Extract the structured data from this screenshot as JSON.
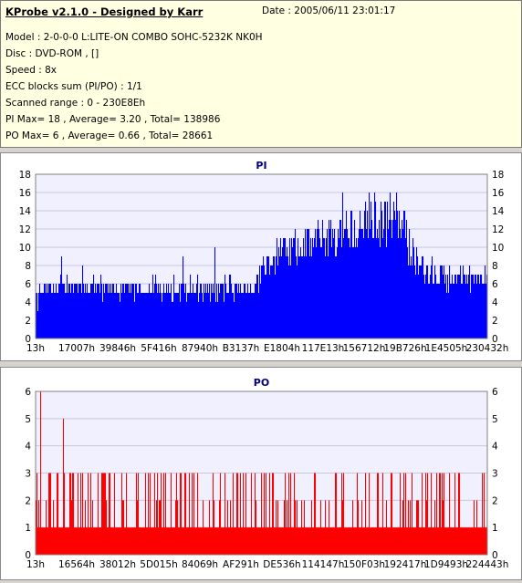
{
  "header": {
    "title": "KProbe v2.1.0 - Designed by Karr",
    "date": "Date : 2005/06/11 23:01:17",
    "lines": [
      "Model : 2-0-0-0 L:LITE-ON COMBO SOHC-5232K NK0H",
      "Disc : DVD-ROM ,  []",
      "Speed : 8x",
      "ECC blocks sum (PI/PO) : 1/1",
      "Scanned range : 0 - 230E8Eh",
      "PI Max= 18 , Average= 3.20 , Total= 138986",
      "PO Max= 6 , Average= 0.66 , Total= 28661"
    ]
  },
  "colors": {
    "pi": "#0000ff",
    "po": "#ff0000",
    "plot_bg": "#f0f0ff",
    "grid": "#c8c8dc",
    "title": "#000080"
  },
  "chart_data": [
    {
      "type": "bar",
      "title": "PI",
      "ylim": [
        0,
        18
      ],
      "yticks": [
        0,
        2,
        4,
        6,
        8,
        10,
        12,
        14,
        16,
        18
      ],
      "xticklabels": [
        "13h",
        "17007h",
        "39846h",
        "5F416h",
        "87940h",
        "B3137h",
        "E1804h",
        "117E13h",
        "156712h",
        "19B726h",
        "1E4505h",
        "230432h"
      ],
      "grid": true,
      "profile": {
        "x_fraction": [
          0,
          0.02,
          0.05,
          0.3,
          0.48,
          0.5,
          0.52,
          0.6,
          0.7,
          0.75,
          0.8,
          0.83,
          0.85,
          0.9,
          1.0
        ],
        "base": [
          4,
          5,
          5,
          5,
          5,
          6,
          8,
          9,
          10,
          11,
          10,
          9,
          7,
          6,
          6
        ],
        "spike": [
          2,
          2,
          2,
          2,
          2,
          3,
          3,
          4,
          5,
          6,
          6,
          5,
          3,
          2,
          2
        ]
      },
      "max": 18
    },
    {
      "type": "bar",
      "title": "PO",
      "ylim": [
        0,
        6
      ],
      "yticks": [
        0,
        1,
        2,
        3,
        4,
        5,
        6
      ],
      "xticklabels": [
        "13h",
        "16564h",
        "38012h",
        "5D015h",
        "84069h",
        "AF291h",
        "DE536h",
        "114147h",
        "150F03h",
        "192417h",
        "1D9493h",
        "224443h"
      ],
      "grid": true,
      "baseline": 1,
      "max": 6
    }
  ]
}
